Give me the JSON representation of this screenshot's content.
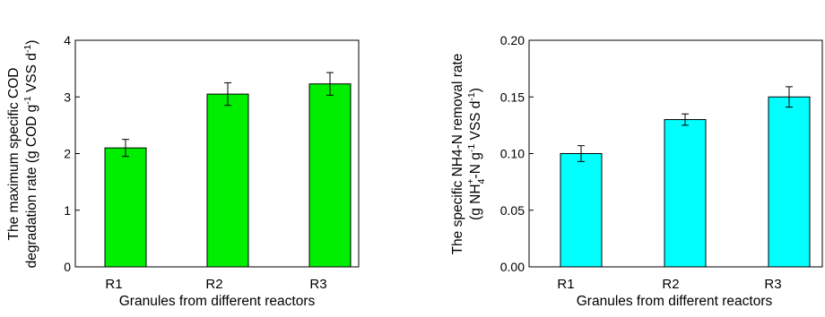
{
  "chart_data": [
    {
      "type": "bar",
      "categories": [
        "R1",
        "R2",
        "R3"
      ],
      "values": [
        2.1,
        3.05,
        3.23
      ],
      "errors": [
        0.15,
        0.2,
        0.2
      ],
      "bar_color": "#00ee00",
      "ylim": [
        0,
        4
      ],
      "yticks": [
        "0",
        "1",
        "2",
        "3",
        "4"
      ],
      "xlabel": "Granules from different reactors",
      "ylabel": {
        "line1": "The maximum specific COD",
        "line2_pre": "degradation rate (g COD g",
        "line2_sup1": "-1",
        "line2_mid": " VSS d",
        "line2_sup2": "-1",
        "line2_post": ")"
      },
      "grid": false
    },
    {
      "type": "bar",
      "categories": [
        "R1",
        "R2",
        "R3"
      ],
      "values": [
        0.1,
        0.13,
        0.15
      ],
      "errors": [
        0.007,
        0.005,
        0.009
      ],
      "bar_color": "#00ffff",
      "ylim": [
        0,
        0.2
      ],
      "yticks": [
        "0.00",
        "0.05",
        "0.10",
        "0.15",
        "0.20"
      ],
      "xlabel": "Granules from different reactors",
      "ylabel": {
        "line1": "The specific NH4-N removal rate",
        "line2_pre": "(g NH",
        "line2_sub": "4",
        "line2_sup1": "+",
        "line2_mid": "-N g",
        "line2_sup2": "-1",
        "line2_post": " VSS d",
        "line2_sup3": "-1",
        "line2_end": ")"
      },
      "grid": false
    }
  ]
}
